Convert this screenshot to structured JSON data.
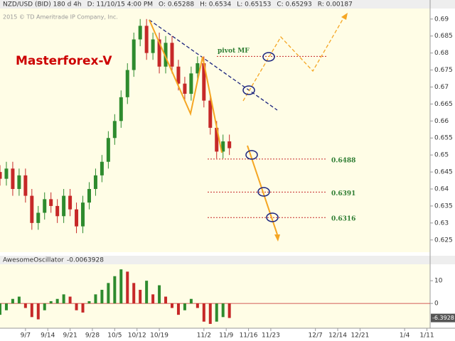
{
  "header": [
    "NZD/USD (BID) 180 d 4h",
    "D: 11/10/15 4:00 PM",
    "O: 0.65288",
    "H: 0.6534",
    "L: 0.65153",
    "C: 0.65293",
    "R: 0.00187"
  ],
  "copyright": "2015 © TD Ameritrade IP Company, Inc.",
  "watermark": "Masterforex-V",
  "chart_data": [
    {
      "type": "candlestick",
      "x": [
        -8,
        -6,
        -4,
        -2,
        0,
        2,
        4,
        6,
        8,
        10,
        12,
        14,
        16,
        18,
        20,
        22,
        24,
        26,
        28,
        30,
        32,
        34,
        36,
        38,
        40,
        42,
        44,
        46,
        48,
        50,
        52,
        54,
        56,
        58,
        60,
        62,
        64
      ],
      "open": [
        0.645,
        0.643,
        0.646,
        0.64,
        0.644,
        0.638,
        0.63,
        0.633,
        0.637,
        0.635,
        0.632,
        0.638,
        0.634,
        0.629,
        0.636,
        0.64,
        0.644,
        0.648,
        0.655,
        0.66,
        0.667,
        0.675,
        0.684,
        0.688,
        0.68,
        0.684,
        0.676,
        0.683,
        0.676,
        0.671,
        0.668,
        0.674,
        0.677,
        0.666,
        0.658,
        0.651,
        0.654
      ],
      "high": [
        0.647,
        0.648,
        0.648,
        0.646,
        0.646,
        0.64,
        0.635,
        0.639,
        0.639,
        0.637,
        0.64,
        0.64,
        0.636,
        0.638,
        0.642,
        0.646,
        0.65,
        0.657,
        0.662,
        0.669,
        0.677,
        0.686,
        0.69,
        0.69,
        0.686,
        0.686,
        0.685,
        0.685,
        0.678,
        0.673,
        0.676,
        0.679,
        0.679,
        0.668,
        0.66,
        0.656,
        0.656
      ],
      "low": [
        0.641,
        0.641,
        0.638,
        0.638,
        0.636,
        0.628,
        0.628,
        0.631,
        0.633,
        0.63,
        0.63,
        0.632,
        0.627,
        0.627,
        0.634,
        0.638,
        0.642,
        0.646,
        0.653,
        0.658,
        0.665,
        0.673,
        0.682,
        0.678,
        0.678,
        0.674,
        0.674,
        0.674,
        0.669,
        0.666,
        0.666,
        0.672,
        0.664,
        0.656,
        0.649,
        0.649,
        0.65
      ],
      "close": [
        0.643,
        0.646,
        0.64,
        0.644,
        0.638,
        0.63,
        0.633,
        0.637,
        0.635,
        0.632,
        0.638,
        0.634,
        0.629,
        0.636,
        0.64,
        0.644,
        0.648,
        0.655,
        0.66,
        0.667,
        0.675,
        0.684,
        0.688,
        0.68,
        0.684,
        0.676,
        0.683,
        0.676,
        0.671,
        0.668,
        0.674,
        0.677,
        0.666,
        0.658,
        0.651,
        0.654,
        0.652
      ],
      "up_color": "#2e8b2e",
      "down_color": "#c62828",
      "xlim": [
        -8,
        127
      ],
      "ylim": [
        0.6214,
        0.6956
      ],
      "yticks": [
        0.69,
        0.685,
        0.68,
        0.675,
        0.67,
        0.665,
        0.66,
        0.655,
        0.65,
        0.645,
        0.64,
        0.635,
        0.63,
        0.625
      ],
      "xticks": [
        {
          "value": 0,
          "label": "9/7"
        },
        {
          "value": 7,
          "label": "9/14"
        },
        {
          "value": 14,
          "label": "9/21"
        },
        {
          "value": 21,
          "label": "9/28"
        },
        {
          "value": 28,
          "label": "10/5"
        },
        {
          "value": 35,
          "label": "10/12"
        },
        {
          "value": 42,
          "label": "10/19"
        },
        {
          "value": 56,
          "label": "11/2"
        },
        {
          "value": 63,
          "label": "11/9"
        },
        {
          "value": 70,
          "label": "11/16"
        },
        {
          "value": 77,
          "label": "11/23"
        },
        {
          "value": 91,
          "label": "12/7"
        },
        {
          "value": 98,
          "label": "12/14"
        },
        {
          "value": 105,
          "label": "12/21"
        },
        {
          "value": 119,
          "label": "1/4"
        },
        {
          "value": 126,
          "label": "1/11"
        }
      ],
      "levels": [
        {
          "value": 0.679,
          "label": "pivot MF"
        },
        {
          "value": 0.6488,
          "label": "0.6488"
        },
        {
          "value": 0.6391,
          "label": "0.6391"
        },
        {
          "value": 0.6316,
          "label": "0.6316"
        }
      ],
      "level_color": "#c62828"
    },
    {
      "type": "bar",
      "title": "AwesomeOscillator",
      "last_value": "-0.0063928",
      "last_label": "-6.3928",
      "values": [
        -5,
        -3,
        2,
        3,
        -2,
        -6,
        -7,
        -3,
        1,
        2,
        4,
        3,
        -3,
        -4,
        1,
        4,
        6,
        9,
        12,
        15,
        14,
        9,
        6,
        10,
        4,
        8,
        3,
        -2,
        -5,
        -3,
        2,
        -2,
        -8,
        -9,
        -8,
        -6,
        -6.3928
      ],
      "ylim": [
        -10.9,
        16.3
      ],
      "yticks": [
        0,
        10
      ]
    }
  ]
}
